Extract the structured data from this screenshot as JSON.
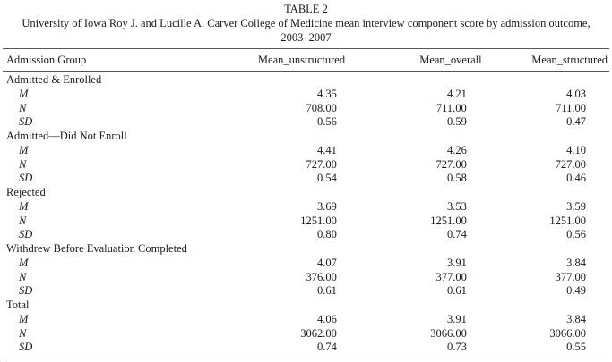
{
  "caption": {
    "label": "TABLE 2",
    "title_line1": "University of Iowa Roy J. and Lucille A. Carver College of Medicine mean interview component score by admission outcome,",
    "title_line2": "2003–2007"
  },
  "columns": [
    "Admission Group",
    "Mean_unstructured",
    "Mean_overall",
    "Mean_structured"
  ],
  "groups": [
    {
      "name": "Admitted & Enrolled",
      "rows": [
        {
          "stat": "M",
          "unstructured": "4.35",
          "overall": "4.21",
          "structured": "4.03"
        },
        {
          "stat": "N",
          "unstructured": "708.00",
          "overall": "711.00",
          "structured": "711.00"
        },
        {
          "stat": "SD",
          "unstructured": "0.56",
          "overall": "0.59",
          "structured": "0.47"
        }
      ]
    },
    {
      "name": "Admitted—Did Not Enroll",
      "rows": [
        {
          "stat": "M",
          "unstructured": "4.41",
          "overall": "4.26",
          "structured": "4.10"
        },
        {
          "stat": "N",
          "unstructured": "727.00",
          "overall": "727.00",
          "structured": "727.00"
        },
        {
          "stat": "SD",
          "unstructured": "0.54",
          "overall": "0.58",
          "structured": "0.46"
        }
      ]
    },
    {
      "name": "Rejected",
      "rows": [
        {
          "stat": "M",
          "unstructured": "3.69",
          "overall": "3.53",
          "structured": "3.59"
        },
        {
          "stat": "N",
          "unstructured": "1251.00",
          "overall": "1251.00",
          "structured": "1251.00"
        },
        {
          "stat": "SD",
          "unstructured": "0.80",
          "overall": "0.74",
          "structured": "0.56"
        }
      ]
    },
    {
      "name": "Withdrew Before Evaluation Completed",
      "rows": [
        {
          "stat": "M",
          "unstructured": "4.07",
          "overall": "3.91",
          "structured": "3.84"
        },
        {
          "stat": "N",
          "unstructured": "376.00",
          "overall": "377.00",
          "structured": "377.00"
        },
        {
          "stat": "SD",
          "unstructured": "0.61",
          "overall": "0.61",
          "structured": "0.49"
        }
      ]
    },
    {
      "name": "Total",
      "rows": [
        {
          "stat": "M",
          "unstructured": "4.06",
          "overall": "3.91",
          "structured": "3.84"
        },
        {
          "stat": "N",
          "unstructured": "3062.00",
          "overall": "3066.00",
          "structured": "3066.00"
        },
        {
          "stat": "SD",
          "unstructured": "0.74",
          "overall": "0.73",
          "structured": "0.55"
        }
      ]
    }
  ]
}
